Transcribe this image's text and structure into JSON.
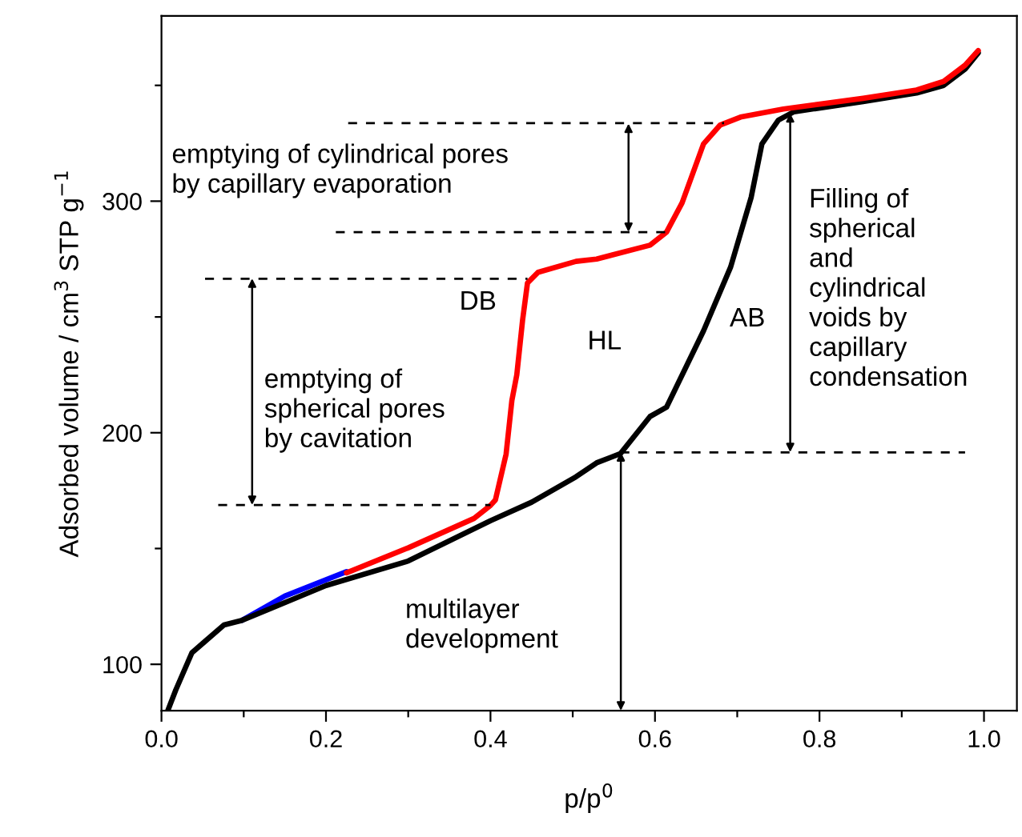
{
  "chart_data": {
    "type": "line",
    "xlabel": "p/p$^{0}$",
    "ylabel": "Adsorbed volume / cm$^{3}$ STP g$^{−1}$",
    "xlim": [
      0,
      1.04
    ],
    "ylim": [
      80,
      380
    ],
    "xticks": [
      {
        "value": 0,
        "label": "0.0"
      },
      {
        "value": 0.1,
        "label": null
      },
      {
        "value": 0.2,
        "label": "0.2"
      },
      {
        "value": 0.3,
        "label": null
      },
      {
        "value": 0.4,
        "label": "0.4"
      },
      {
        "value": 0.5,
        "label": null
      },
      {
        "value": 0.6,
        "label": "0.6"
      },
      {
        "value": 0.7,
        "label": null
      },
      {
        "value": 0.8,
        "label": "0.8"
      },
      {
        "value": 0.9,
        "label": null
      },
      {
        "value": 1.0,
        "label": "1.0"
      }
    ],
    "yticks": [
      100,
      {
        "value": 150,
        "label": null
      },
      200,
      {
        "value": 250,
        "label": null
      },
      300,
      {
        "value": 350,
        "label": null
      }
    ],
    "grid": false,
    "legend": false,
    "marker": "none",
    "series": [
      {
        "color": "#0000ff",
        "x": [
          0.098,
          0.15,
          0.225
        ],
        "values": [
          119,
          129.5,
          140
        ]
      },
      {
        "color": "#000000",
        "x": [
          0.008,
          0.0175,
          0.037,
          0.076,
          0.098,
          0.2,
          0.3,
          0.4,
          0.45,
          0.504,
          0.529,
          0.558,
          0.594,
          0.614,
          0.659,
          0.692,
          0.717,
          0.73,
          0.75,
          0.769,
          0.853,
          0.918,
          0.951,
          0.977,
          0.993
        ],
        "values": [
          80.3,
          89,
          105,
          117,
          119,
          134,
          144.6,
          162,
          170,
          181,
          187,
          191,
          207,
          211,
          244,
          271.6,
          301.7,
          324.7,
          335,
          338.6,
          343,
          346.7,
          350,
          357,
          364
        ]
      },
      {
        "color": "#ff0000",
        "x": [
          0.225,
          0.3,
          0.38,
          0.4,
          0.406,
          0.419,
          0.426,
          0.432,
          0.439,
          0.445,
          0.458,
          0.504,
          0.529,
          0.594,
          0.614,
          0.633,
          0.659,
          0.679,
          0.704,
          0.756,
          0.853,
          0.918,
          0.951,
          0.977,
          0.993
        ],
        "values": [
          139.5,
          150.3,
          163,
          168.6,
          171,
          190.8,
          213.9,
          225,
          248.5,
          264.7,
          269.3,
          274,
          275,
          281,
          286.6,
          299.3,
          324.7,
          332.8,
          336.3,
          339.8,
          344.4,
          348,
          351.7,
          358.7,
          365
        ]
      },
      {
        "color": "#000000",
        "line_style": "dashed",
        "x": [
          0.227,
          0.684
        ],
        "values": [
          333.7,
          333.7
        ]
      },
      {
        "color": "#000000",
        "line_style": "dashed",
        "x": [
          0.212,
          0.614
        ],
        "values": [
          286.6,
          286.6
        ]
      },
      {
        "color": "#000000",
        "line_style": "dashed",
        "x": [
          0.053,
          0.445
        ],
        "values": [
          266.5,
          266.5
        ]
      },
      {
        "color": "#000000",
        "line_style": "dashed",
        "x": [
          0.069,
          0.4
        ],
        "values": [
          168.8,
          168.8
        ]
      },
      {
        "color": "#000000",
        "line_style": "dashed",
        "x": [
          0.558,
          0.977
        ],
        "values": [
          191.5,
          191.5
        ]
      }
    ],
    "annotations": [
      {
        "text": "emptying of cylindrical pores\nby capillary evaporation"
      },
      {
        "text": "emptying of\nspherical pores\nby cavitation"
      },
      {
        "text": "multilayer\ndevelopment"
      },
      {
        "text": "Filling of\nspherical\nand\ncylindrical\nvoids by\ncapillary\ncondensation"
      },
      "DB",
      "HL",
      "AB"
    ]
  }
}
